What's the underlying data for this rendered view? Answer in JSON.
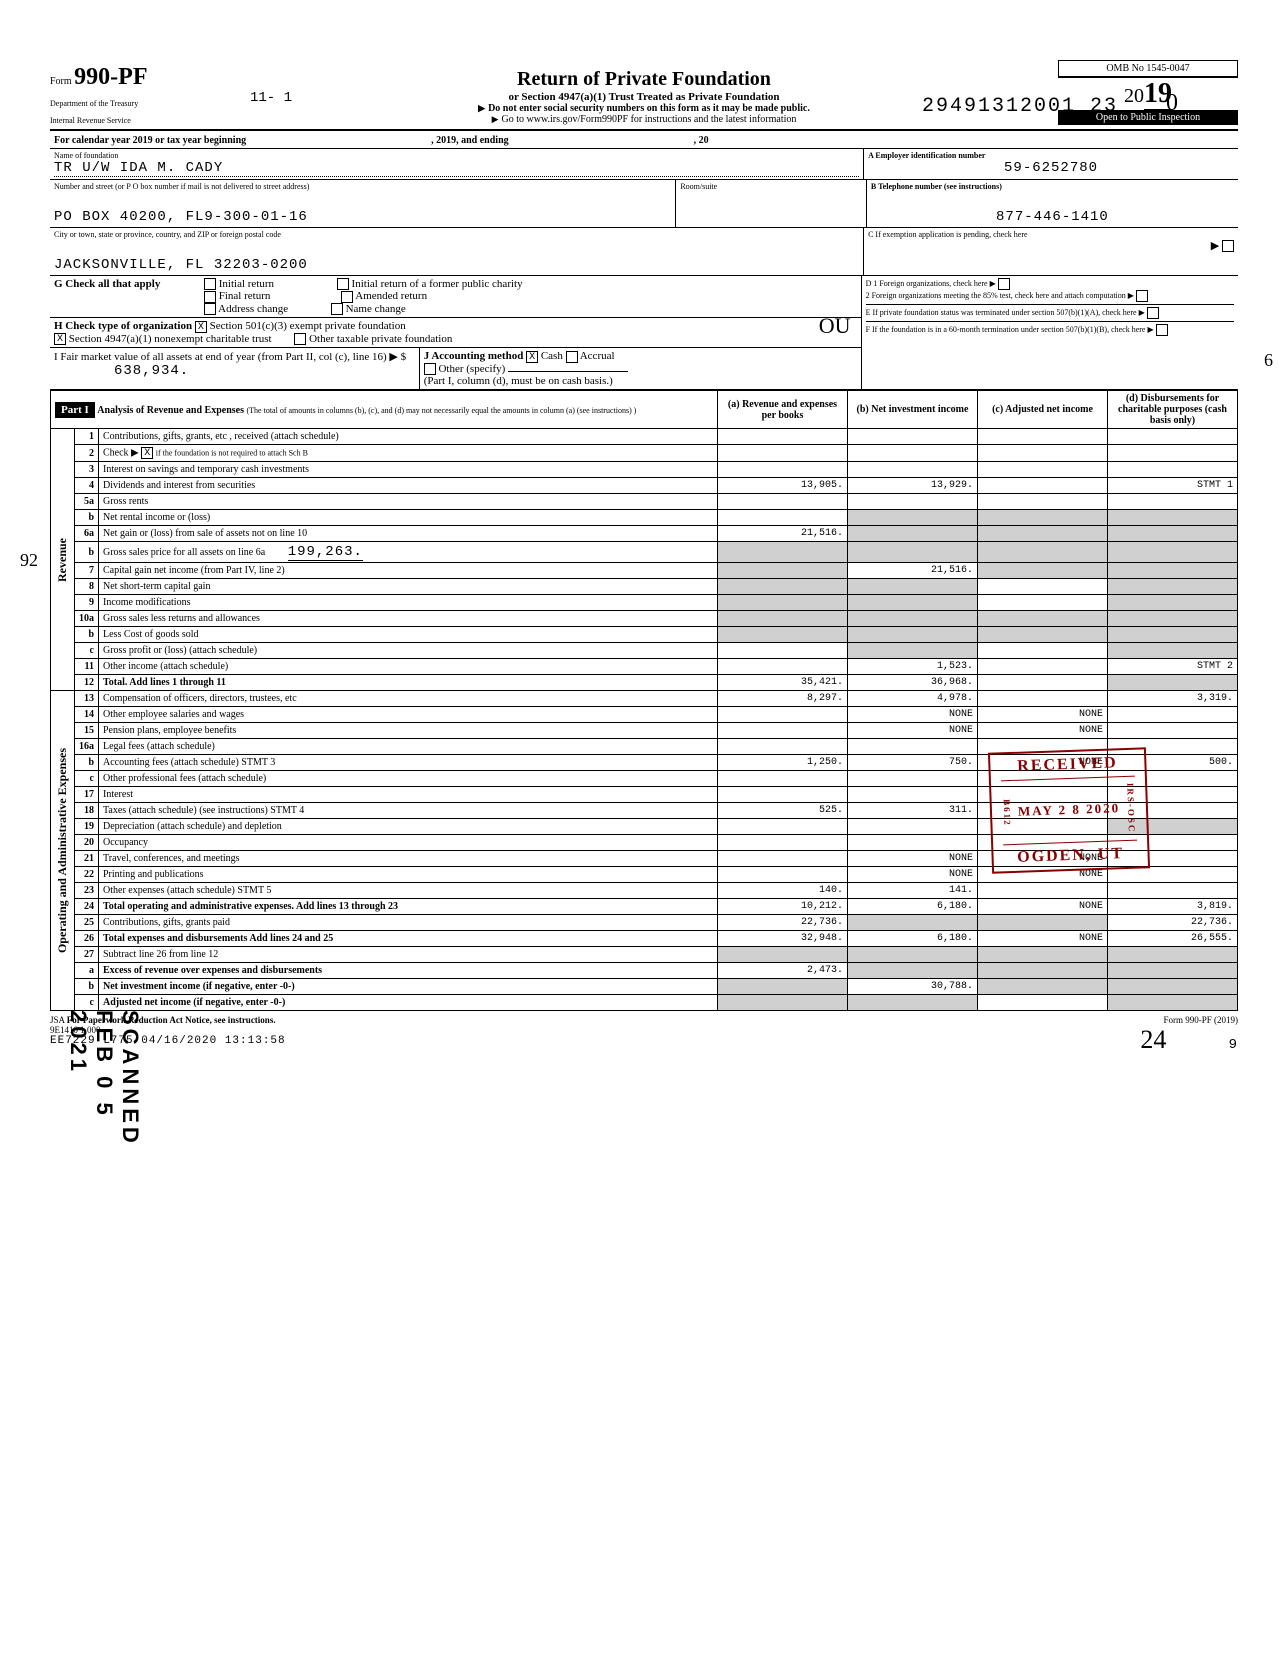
{
  "dln": "29491312001 23",
  "top_right_hand": "0",
  "page_top_num": "11- 1",
  "form": {
    "prefix": "Form",
    "number": "990-PF",
    "dept1": "Department of the Treasury",
    "dept2": "Internal Revenue Service",
    "title": "Return of Private Foundation",
    "subtitle": "or Section 4947(a)(1) Trust Treated as Private Foundation",
    "note1": "Do not enter social security numbers on this form as it may be made public.",
    "note2": "Go to www.irs.gov/Form990PF for instructions and the latest information",
    "omb": "OMB No 1545-0047",
    "year_display": "2019",
    "inspection": "Open to Public Inspection"
  },
  "calendar_line": "For calendar year 2019 or tax year beginning",
  "calendar_mid": ", 2019, and ending",
  "calendar_end": ", 20",
  "name_label": "Name of foundation",
  "name_value": "TR U/W IDA M. CADY",
  "address_label": "Number and street (or P O box number if mail is not delivered to street address)",
  "address_value": "PO BOX 40200, FL9-300-01-16",
  "room_label": "Room/suite",
  "city_label": "City or town, state or province, country, and ZIP or foreign postal code",
  "city_value": "JACKSONVILLE, FL 32203-0200",
  "ein_label": "A  Employer identification number",
  "ein_value": "59-6252780",
  "phone_label": "B  Telephone number (see instructions)",
  "phone_value": "877-446-1410",
  "c_label": "C  If exemption application is pending, check here",
  "d1_label": "D 1 Foreign organizations, check here",
  "d2_label": "2 Foreign organizations meeting the 85% test, check here and attach computation",
  "e_label": "E  If private foundation status was terminated under section 507(b)(1)(A), check here",
  "f_label": "F  If the foundation is in a 60-month termination under section 507(b)(1)(B), check here",
  "g_label": "G  Check all that apply",
  "g_options": {
    "initial_return": "Initial return",
    "final_return": "Final return",
    "address_change": "Address change",
    "initial_former": "Initial return of a former public charity",
    "amended": "Amended return",
    "name_change": "Name change"
  },
  "h_label": "H  Check type of organization",
  "h_options": {
    "501c3": "Section 501(c)(3) exempt private foundation",
    "4947": "Section 4947(a)(1) nonexempt charitable trust",
    "other_taxable": "Other taxable private foundation"
  },
  "i_label": "I  Fair market value of all assets at end of year (from Part II, col (c), line 16) ▶ $",
  "i_value": "638,934.",
  "j_label": "J Accounting method",
  "j_cash": "Cash",
  "j_accrual": "Accrual",
  "j_other": "Other (specify)",
  "j_note": "(Part I, column (d), must be on cash basis.)",
  "part1_label": "Part I",
  "part1_title": "Analysis of Revenue and Expenses",
  "part1_note": "(The total of amounts in columns (b), (c), and (d) may not necessarily equal the amounts in column (a) (see instructions) )",
  "columns": {
    "a": "(a) Revenue and expenses per books",
    "b": "(b) Net investment income",
    "c": "(c) Adjusted net income",
    "d": "(d) Disbursements for charitable purposes (cash basis only)"
  },
  "side_revenue": "Revenue",
  "side_expenses": "Operating and Administrative Expenses",
  "received_stamp": {
    "title": "RECEIVED",
    "date": "MAY 2 8 2020",
    "agency": "OGDEN, UT",
    "side1": "B612",
    "side2": "IRS-OSC"
  },
  "scanned_stamp": "SCANNED FEB 0 5 2021",
  "hand_ou": "OU",
  "margin_92": "92",
  "margin_6": "6",
  "lines": [
    {
      "n": "1",
      "desc": "Contributions, gifts, grants, etc , received (attach schedule)",
      "a": "",
      "b": "",
      "c": "",
      "d": ""
    },
    {
      "n": "2",
      "desc": "Check ▶",
      "checkbox": "X",
      "desc2": "if the foundation is not required to attach Sch B",
      "a": "",
      "b": "",
      "c": "",
      "d": ""
    },
    {
      "n": "3",
      "desc": "Interest on savings and temporary cash investments",
      "a": "",
      "b": "",
      "c": "",
      "d": ""
    },
    {
      "n": "4",
      "desc": "Dividends and interest from securities",
      "a": "13,905.",
      "b": "13,929.",
      "c": "",
      "d": "STMT 1"
    },
    {
      "n": "5a",
      "desc": "Gross rents",
      "a": "",
      "b": "",
      "c": "",
      "d": ""
    },
    {
      "n": "b",
      "desc": "Net rental income or (loss)",
      "a": "",
      "b": "",
      "c": "",
      "d": "",
      "shaded_bcd": true
    },
    {
      "n": "6a",
      "desc": "Net gain or (loss) from sale of assets not on line 10",
      "a": "21,516.",
      "b": "",
      "c": "",
      "d": "",
      "shaded_bcd": true
    },
    {
      "n": "b",
      "desc": "Gross sales price for all assets on line 6a",
      "inline": "199,263.",
      "shaded_all": true
    },
    {
      "n": "7",
      "desc": "Capital gain net income (from Part IV, line 2)",
      "a": "",
      "b": "21,516.",
      "c": "",
      "d": "",
      "shaded_a": true,
      "shaded_cd": true
    },
    {
      "n": "8",
      "desc": "Net short-term capital gain",
      "a": "",
      "b": "",
      "c": "",
      "d": "",
      "shaded_ab": true,
      "shaded_d": true
    },
    {
      "n": "9",
      "desc": "Income modifications",
      "a": "",
      "b": "",
      "c": "",
      "d": "",
      "shaded_ab": true,
      "shaded_d": true
    },
    {
      "n": "10a",
      "desc": "Gross sales less returns and allowances",
      "shaded_all": true
    },
    {
      "n": "b",
      "desc": "Less Cost of goods sold",
      "shaded_all": true
    },
    {
      "n": "c",
      "desc": "Gross profit or (loss) (attach schedule)",
      "a": "",
      "b": "",
      "c": "",
      "d": "",
      "shaded_b": true,
      "shaded_d": true
    },
    {
      "n": "11",
      "desc": "Other income (attach schedule)",
      "a": "",
      "b": "1,523.",
      "c": "",
      "d": "STMT 2"
    },
    {
      "n": "12",
      "desc": "Total. Add lines 1 through 11",
      "a": "35,421.",
      "b": "36,968.",
      "c": "",
      "d": "",
      "bold": true,
      "shaded_d": true
    },
    {
      "n": "13",
      "desc": "Compensation of officers, directors, trustees, etc",
      "a": "8,297.",
      "b": "4,978.",
      "c": "",
      "d": "3,319."
    },
    {
      "n": "14",
      "desc": "Other employee salaries and wages",
      "a": "",
      "b": "NONE",
      "c": "NONE",
      "d": ""
    },
    {
      "n": "15",
      "desc": "Pension plans, employee benefits",
      "a": "",
      "b": "NONE",
      "c": "NONE",
      "d": ""
    },
    {
      "n": "16a",
      "desc": "Legal fees (attach schedule)",
      "a": "",
      "b": "",
      "c": "",
      "d": ""
    },
    {
      "n": "b",
      "desc": "Accounting fees (attach schedule) STMT 3",
      "a": "1,250.",
      "b": "750.",
      "c": "NONE",
      "d": "500."
    },
    {
      "n": "c",
      "desc": "Other professional fees (attach schedule)",
      "a": "",
      "b": "",
      "c": "",
      "d": ""
    },
    {
      "n": "17",
      "desc": "Interest",
      "a": "",
      "b": "",
      "c": "",
      "d": ""
    },
    {
      "n": "18",
      "desc": "Taxes (attach schedule) (see instructions) STMT 4",
      "a": "525.",
      "b": "311.",
      "c": "",
      "d": ""
    },
    {
      "n": "19",
      "desc": "Depreciation (attach schedule) and depletion",
      "a": "",
      "b": "",
      "c": "",
      "d": "",
      "shaded_d": true
    },
    {
      "n": "20",
      "desc": "Occupancy",
      "a": "",
      "b": "",
      "c": "",
      "d": ""
    },
    {
      "n": "21",
      "desc": "Travel, conferences, and meetings",
      "a": "",
      "b": "NONE",
      "c": "NONE",
      "d": ""
    },
    {
      "n": "22",
      "desc": "Printing and publications",
      "a": "",
      "b": "NONE",
      "c": "NONE",
      "d": ""
    },
    {
      "n": "23",
      "desc": "Other expenses (attach schedule) STMT 5",
      "a": "140.",
      "b": "141.",
      "c": "",
      "d": ""
    },
    {
      "n": "24",
      "desc": "Total operating and administrative expenses. Add lines 13 through 23",
      "a": "10,212.",
      "b": "6,180.",
      "c": "NONE",
      "d": "3,819.",
      "bold": true
    },
    {
      "n": "25",
      "desc": "Contributions, gifts, grants paid",
      "a": "22,736.",
      "b": "",
      "c": "",
      "d": "22,736.",
      "shaded_bc": true
    },
    {
      "n": "26",
      "desc": "Total expenses and disbursements Add lines 24 and 25",
      "a": "32,948.",
      "b": "6,180.",
      "c": "NONE",
      "d": "26,555.",
      "bold": true
    },
    {
      "n": "27",
      "desc": "Subtract line 26 from line 12",
      "shaded_all": true
    },
    {
      "n": "a",
      "desc": "Excess of revenue over expenses and disbursements",
      "a": "2,473.",
      "b": "",
      "c": "",
      "d": "",
      "shaded_bcd": true,
      "bold": true
    },
    {
      "n": "b",
      "desc": "Net investment income (if negative, enter -0-)",
      "a": "",
      "b": "30,788.",
      "c": "",
      "d": "",
      "shaded_a": true,
      "shaded_cd": true,
      "bold": true
    },
    {
      "n": "c",
      "desc": "Adjusted net income (if negative, enter -0-)",
      "a": "",
      "b": "",
      "c": "",
      "d": "",
      "shaded_ab": true,
      "shaded_d": true,
      "bold": true
    }
  ],
  "footer": {
    "jsa": "JSA",
    "paperwork": "For Paperwork Reduction Act Notice, see instructions.",
    "batch": "9E1410 1 000",
    "tracking": "EE7229 L775 04/16/2020 13:13:58",
    "form_ref": "Form 990-PF (2019)",
    "hand_24": "24",
    "page9": "9"
  }
}
